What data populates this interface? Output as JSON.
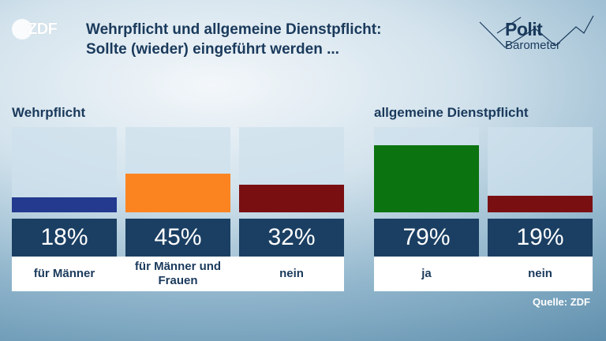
{
  "brand": {
    "zdf": "ZDF",
    "politbarometer_top": "Polit",
    "politbarometer_bottom": "Barometer"
  },
  "title_line1": "Wehrpflicht und allgemeine Dienstpflicht:",
  "title_line2": "Sollte (wieder) eingeführt werden ...",
  "source": "Quelle: ZDF",
  "chart_data": [
    {
      "type": "bar",
      "title": "Wehrpflicht",
      "categories": [
        "für Männer",
        "für Männer und Frauen",
        "nein"
      ],
      "values": [
        18,
        45,
        32
      ],
      "value_labels": [
        "18%",
        "45%",
        "32%"
      ],
      "colors": [
        "#233a8f",
        "#fb8421",
        "#7a0f12"
      ],
      "ylim": [
        0,
        100
      ]
    },
    {
      "type": "bar",
      "title": "allgemeine Dienstpflicht",
      "categories": [
        "ja",
        "nein"
      ],
      "values": [
        79,
        19
      ],
      "value_labels": [
        "79%",
        "19%"
      ],
      "colors": [
        "#0b7410",
        "#7a0f12"
      ],
      "ylim": [
        0,
        100
      ]
    }
  ]
}
